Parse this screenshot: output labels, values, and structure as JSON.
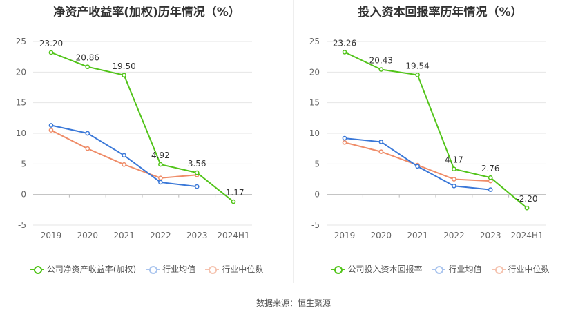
{
  "source": "数据来源：恒生聚源",
  "legend_common": [
    "行业均值",
    "行业中位数"
  ],
  "chart_data": [
    {
      "type": "line",
      "title": "净资产收益率(加权)历年情况（%）",
      "categories": [
        "2019",
        "2020",
        "2021",
        "2022",
        "2023",
        "2024H1"
      ],
      "ylim": [
        -5,
        25
      ],
      "yticks": [
        "-5",
        "0",
        "5",
        "10",
        "15",
        "20",
        "25"
      ],
      "grid": true,
      "legend_position": "bottom",
      "series": [
        {
          "name": "公司净资产收益率(加权)",
          "color": "#52c41a",
          "values": [
            23.2,
            20.86,
            19.5,
            4.92,
            3.56,
            -1.17
          ],
          "labels": [
            "23.20",
            "20.86",
            "19.50",
            "4.92",
            "3.56",
            "-1.17"
          ]
        },
        {
          "name": "行业均值",
          "color": "#3a78d8",
          "values": [
            11.3,
            10.0,
            6.4,
            2.0,
            1.3,
            null
          ]
        },
        {
          "name": "行业中位数",
          "color": "#ef8c68",
          "values": [
            10.5,
            7.5,
            4.9,
            2.7,
            3.2,
            null
          ]
        }
      ]
    },
    {
      "type": "line",
      "title": "投入资本回报率历年情况（%）",
      "categories": [
        "2019",
        "2020",
        "2021",
        "2022",
        "2023",
        "2024H1"
      ],
      "ylim": [
        -5,
        25
      ],
      "yticks": [
        "-5",
        "0",
        "5",
        "10",
        "15",
        "20",
        "25"
      ],
      "grid": true,
      "legend_position": "bottom",
      "series": [
        {
          "name": "公司投入资本回报率",
          "color": "#52c41a",
          "values": [
            23.26,
            20.43,
            19.54,
            4.17,
            2.76,
            -2.2
          ],
          "labels": [
            "23.26",
            "20.43",
            "19.54",
            "4.17",
            "2.76",
            "-2.20"
          ]
        },
        {
          "name": "行业均值",
          "color": "#3a78d8",
          "values": [
            9.2,
            8.6,
            4.6,
            1.4,
            0.8,
            null
          ]
        },
        {
          "name": "行业中位数",
          "color": "#ef8c68",
          "values": [
            8.5,
            7.0,
            4.8,
            2.5,
            2.2,
            null
          ]
        }
      ]
    }
  ]
}
